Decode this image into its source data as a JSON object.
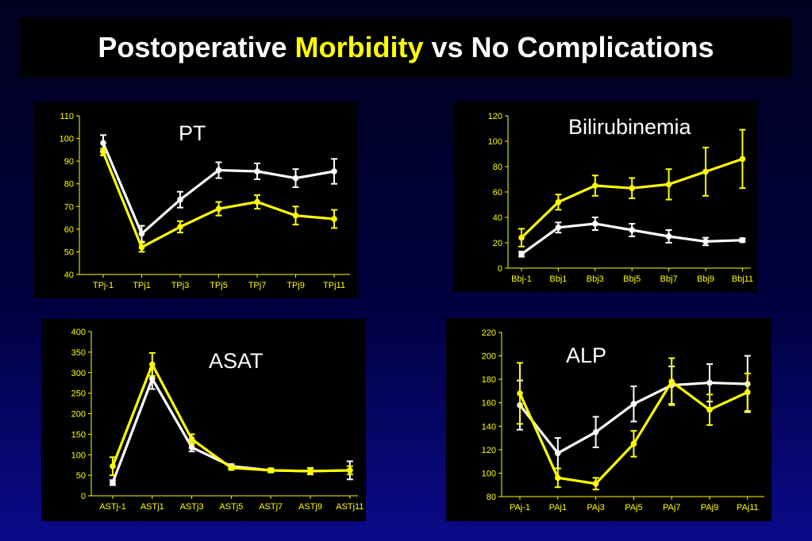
{
  "title": {
    "part1": "Postoperative ",
    "highlight": "Morbidity",
    "part2": " vs No Complications"
  },
  "colors": {
    "morbidity": "#ffff00",
    "no_complications": "#ffffff",
    "axis": "#ffff00",
    "tick_text": "#ffff00",
    "panel_bg": "#000000"
  },
  "chart_data": [
    {
      "type": "line",
      "title": "PT",
      "categories": [
        "TPj-1",
        "TPj1",
        "TPj3",
        "TPj5",
        "TPj7",
        "TPj9",
        "TPj11"
      ],
      "ylim": [
        40,
        110
      ],
      "yticks": [
        "40",
        "50",
        "60",
        "70",
        "80",
        "90",
        "100",
        "110"
      ],
      "series": [
        {
          "color": "#ffffff",
          "values": [
            98,
            58,
            73,
            86,
            85.5,
            82.5,
            85.5
          ],
          "errors": [
            3.5,
            3.5,
            3.5,
            3.5,
            3.5,
            4,
            5.5
          ]
        },
        {
          "color": "#ffff00",
          "values": [
            94,
            52,
            61,
            69,
            72,
            66,
            64.5
          ],
          "errors": [
            1.5,
            2,
            2.5,
            3,
            3,
            4,
            4
          ]
        }
      ]
    },
    {
      "type": "line",
      "title": "Bilirubinemia",
      "categories": [
        "Bbj-1",
        "Bbj1",
        "Bbj3",
        "Bbj5",
        "Bbj7",
        "Bbj9",
        "Bbj11"
      ],
      "ylim": [
        0,
        120
      ],
      "yticks": [
        "0",
        "20",
        "40",
        "60",
        "80",
        "100",
        "120"
      ],
      "series": [
        {
          "color": "#ffffff",
          "values": [
            11,
            32,
            35,
            30,
            25,
            21,
            22
          ],
          "errors": [
            2,
            4,
            5,
            5,
            5,
            3,
            1.5
          ]
        },
        {
          "color": "#ffff00",
          "values": [
            24,
            52,
            65,
            63,
            66,
            76,
            86
          ],
          "errors": [
            7,
            6,
            8,
            8,
            12,
            19,
            23
          ]
        }
      ]
    },
    {
      "type": "line",
      "title": "ASAT",
      "categories": [
        "ASTj-1",
        "ASTj1",
        "ASTj3",
        "ASTj5",
        "ASTj7",
        "ASTj9",
        "ASTj11"
      ],
      "ylim": [
        0,
        400
      ],
      "yticks": [
        "0",
        "50",
        "100",
        "150",
        "200",
        "250",
        "300",
        "350",
        "400"
      ],
      "series": [
        {
          "color": "#ffffff",
          "values": [
            32,
            285,
            118,
            72,
            62,
            60,
            62
          ],
          "errors": [
            6,
            25,
            10,
            5,
            4,
            8,
            22
          ]
        },
        {
          "color": "#ffff00",
          "values": [
            72,
            320,
            138,
            68,
            62,
            60,
            62
          ],
          "errors": [
            22,
            28,
            12,
            5,
            5,
            7,
            10
          ]
        }
      ]
    },
    {
      "type": "line",
      "title": "ALP",
      "categories": [
        "PAj-1",
        "PAj1",
        "PAj3",
        "PAj5",
        "PAj7",
        "PAj9",
        "PAj11"
      ],
      "ylim": [
        80,
        220
      ],
      "yticks": [
        "80",
        "100",
        "120",
        "140",
        "160",
        "180",
        "200",
        "220"
      ],
      "series": [
        {
          "color": "#ffffff",
          "values": [
            158,
            117,
            135,
            159,
            175,
            177,
            176
          ],
          "errors": [
            21,
            13,
            13,
            15,
            16,
            16,
            24
          ]
        },
        {
          "color": "#ffff00",
          "values": [
            168,
            96,
            91,
            125,
            178,
            154,
            169
          ],
          "errors": [
            26,
            8,
            5,
            11,
            20,
            13,
            16
          ]
        }
      ]
    }
  ]
}
